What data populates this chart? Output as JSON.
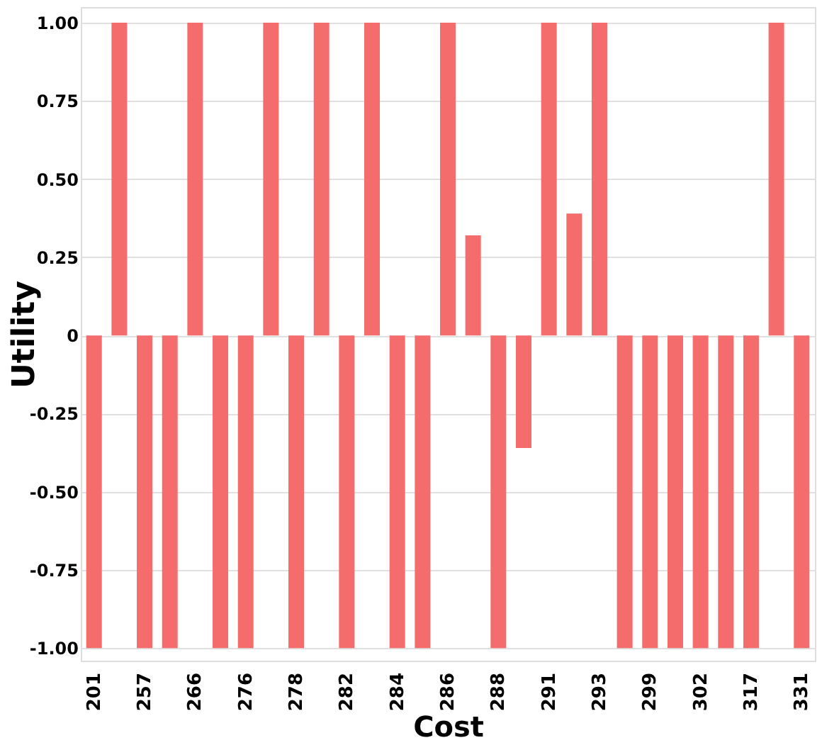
{
  "chart_data": {
    "type": "bar",
    "xlabel": "Cost",
    "ylabel": "Utility",
    "categories": [
      "201",
      null,
      "257",
      null,
      "266",
      null,
      "276",
      null,
      "278",
      null,
      "282",
      null,
      "284",
      null,
      "286",
      null,
      "288",
      null,
      "291",
      null,
      "293",
      null,
      "299",
      null,
      "302",
      null,
      "317",
      null,
      "331"
    ],
    "values": [
      -1,
      1,
      -1,
      -1,
      1,
      -1,
      -1,
      1,
      -1,
      1,
      -1,
      1,
      -1,
      -1,
      1,
      0.32,
      -1,
      -0.36,
      1,
      0.39,
      1,
      -1,
      -1,
      -1,
      -1,
      -1,
      -1,
      1,
      -1
    ],
    "color": "#f46c6c",
    "ylim": [
      -1.04,
      1.05
    ],
    "yticks": [
      {
        "value": -1,
        "label": "-1.00"
      },
      {
        "value": -0.75,
        "label": "-0.75"
      },
      {
        "value": -0.5,
        "label": "-0.50"
      },
      {
        "value": -0.25,
        "label": "-0.25"
      },
      {
        "value": 0,
        "label": "0"
      },
      {
        "value": 0.25,
        "label": "0.25"
      },
      {
        "value": 0.5,
        "label": "0.50"
      },
      {
        "value": 0.75,
        "label": "0.75"
      },
      {
        "value": 1,
        "label": "1.00"
      }
    ],
    "grid": "y"
  }
}
